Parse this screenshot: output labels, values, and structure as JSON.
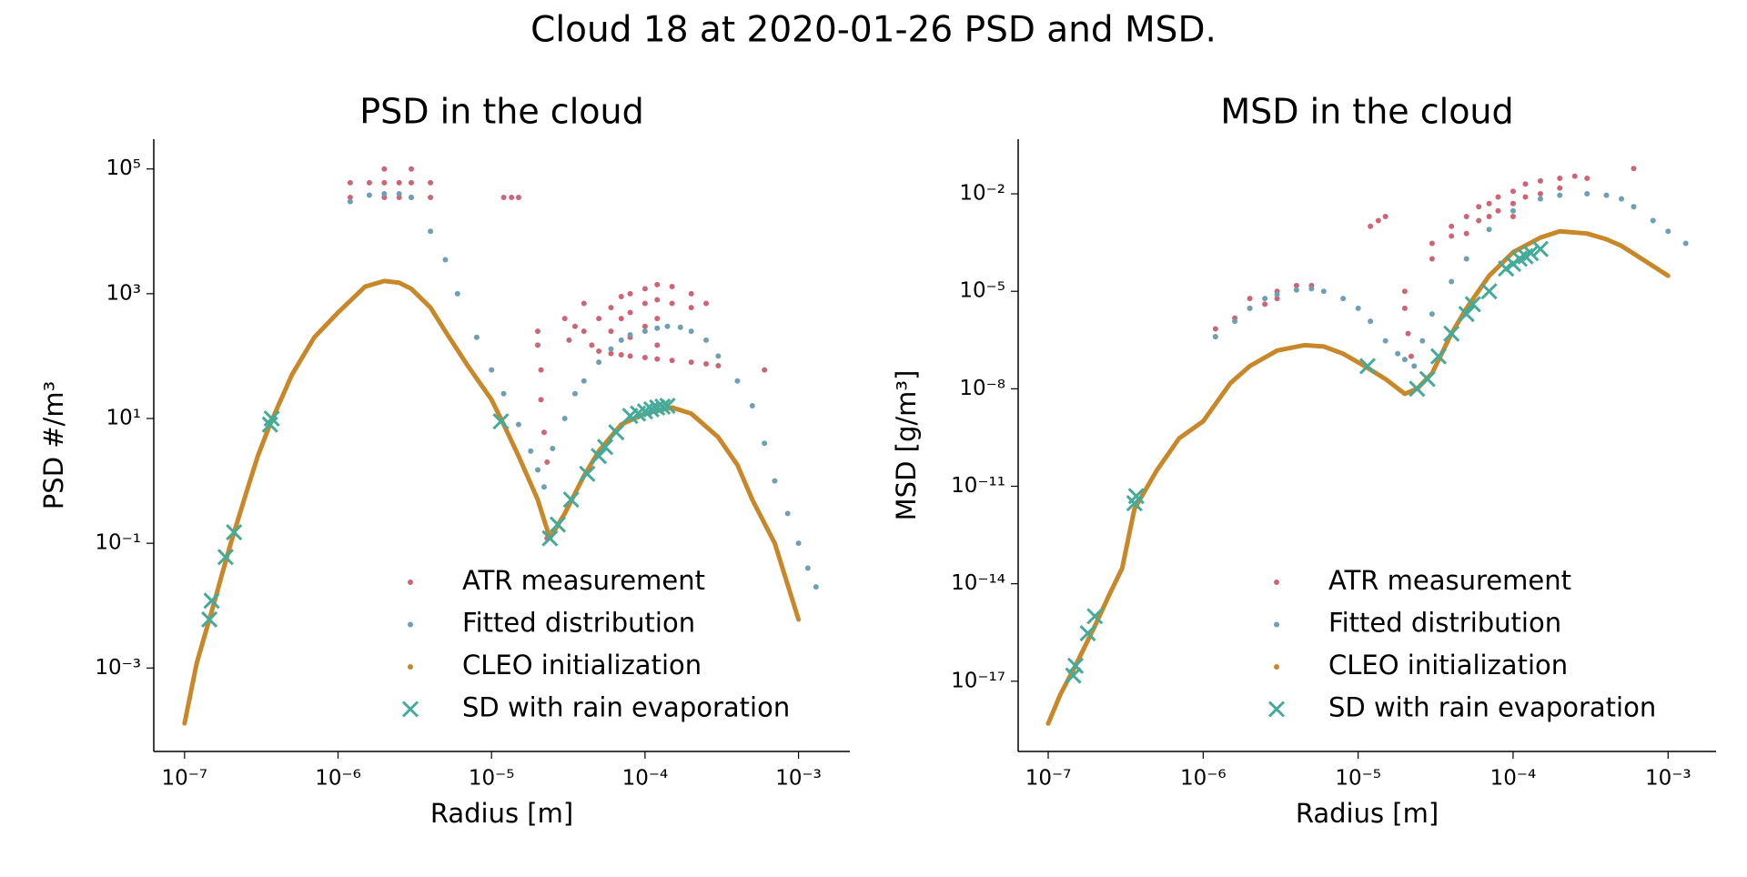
{
  "title": "Cloud 18 at 2020-01-26  PSD and MSD.",
  "chart_data": [
    {
      "type": "scatter",
      "title": "PSD in the cloud",
      "x_label": "Radius [m]",
      "y_label": "PSD #/m³",
      "log_x": true,
      "log_y": true,
      "legend": "lower right",
      "xlim": [
        6.3e-08,
        0.00216
      ],
      "ylim": [
        4.6e-05,
        300000.0
      ],
      "xticks": [
        {
          "value": 1e-07,
          "label": "10⁻⁷"
        },
        {
          "value": 1e-06,
          "label": "10⁻⁶"
        },
        {
          "value": 1e-05,
          "label": "10⁻⁵"
        },
        {
          "value": 0.0001,
          "label": "10⁻⁴"
        },
        {
          "value": 0.001,
          "label": "10⁻³"
        }
      ],
      "yticks": [
        {
          "value": 0.001,
          "label": "10⁻³"
        },
        {
          "value": 0.1,
          "label": "10⁻¹"
        },
        {
          "value": 10,
          "label": "10¹"
        },
        {
          "value": 1000,
          "label": "10³"
        },
        {
          "value": 100000,
          "label": "10⁵"
        }
      ],
      "series": [
        {
          "name": "ATR measurement",
          "color": "#cc6677",
          "marker": "dot",
          "x": [
            1.2e-06,
            1.2e-06,
            1.6e-06,
            2e-06,
            2e-06,
            2e-06,
            2.5e-06,
            2.5e-06,
            3e-06,
            3e-06,
            3e-06,
            4e-06,
            4e-06,
            1.2e-05,
            1.35e-05,
            1.5e-05,
            2e-05,
            2e-05,
            2.1e-05,
            2.1e-05,
            2.2e-05,
            2.3e-05,
            2.3e-05,
            3e-05,
            3.2e-05,
            3.5e-05,
            4e-05,
            4e-05,
            4.5e-05,
            5e-05,
            5e-05,
            6e-05,
            6e-05,
            6e-05,
            7e-05,
            7e-05,
            7e-05,
            8e-05,
            8e-05,
            8e-05,
            8e-05,
            0.0001,
            0.0001,
            0.0001,
            0.0001,
            0.00012,
            0.00012,
            0.00012,
            0.00012,
            0.00012,
            0.00015,
            0.00015,
            0.00015,
            0.0002,
            0.0002,
            0.0002,
            0.00025,
            0.00025,
            0.0003,
            0.0006
          ],
          "values": [
            60000,
            35000,
            60000,
            100000,
            60000,
            35000,
            60000,
            35000,
            100000,
            60000,
            35000,
            60000,
            35000,
            35000,
            35000,
            35000,
            250,
            150,
            60,
            20,
            6,
            2,
            0.12,
            400,
            180,
            300,
            700,
            250,
            150,
            400,
            120,
            600,
            250,
            110,
            900,
            400,
            105,
            1000,
            500,
            200,
            100,
            1200,
            700,
            300,
            95,
            1400,
            800,
            400,
            150,
            90,
            1300,
            700,
            85,
            1000,
            600,
            80,
            700,
            75,
            70,
            60
          ]
        },
        {
          "name": "Fitted distribution",
          "color": "#6f9fb5",
          "marker": "dot",
          "x": [
            1.2e-06,
            1.6e-06,
            2e-06,
            2.5e-06,
            3e-06,
            4e-06,
            5e-06,
            6e-06,
            8e-06,
            1e-05,
            1.2e-05,
            1.5e-05,
            1.8e-05,
            2e-05,
            2.2e-05,
            2.5e-05,
            3e-05,
            3.5e-05,
            4e-05,
            5e-05,
            6e-05,
            7e-05,
            8e-05,
            0.0001,
            0.00012,
            0.00014,
            0.00017,
            0.0002,
            0.00025,
            0.0003,
            0.0004,
            0.0005,
            0.0006,
            0.0007,
            0.00085,
            0.001,
            0.00115,
            0.0013
          ],
          "values": [
            30000,
            38000,
            40000,
            40000,
            35000,
            10000,
            3500,
            1000,
            200,
            60,
            25,
            8,
            3,
            1.5,
            0.8,
            3.3,
            10,
            25,
            40,
            80,
            130,
            180,
            220,
            250,
            280,
            300,
            290,
            250,
            180,
            100,
            40,
            16,
            4,
            1,
            0.3,
            0.1,
            0.04,
            0.02
          ]
        },
        {
          "name": "CLEO initialization",
          "color": "#c8882a",
          "marker": "line",
          "x": [
            1e-07,
            1.2e-07,
            1.5e-07,
            1.8e-07,
            2e-07,
            2.5e-07,
            3e-07,
            3.6e-07,
            5e-07,
            7e-07,
            1e-06,
            1.5e-06,
            2e-06,
            2.5e-06,
            3e-06,
            4e-06,
            5e-06,
            7e-06,
            1e-05,
            1.2e-05,
            1.5e-05,
            2e-05,
            2.4e-05,
            3e-05,
            4e-05,
            5e-05,
            7e-05,
            0.0001,
            0.00015,
            0.0002,
            0.0003,
            0.0004,
            0.0005,
            0.0007,
            0.001
          ],
          "values": [
            0.00013,
            0.0012,
            0.008,
            0.04,
            0.1,
            0.6,
            2.5,
            8,
            50,
            200,
            500,
            1300,
            1600,
            1500,
            1200,
            600,
            250,
            70,
            20,
            8,
            2.5,
            0.5,
            0.12,
            0.3,
            1.2,
            3,
            8,
            12,
            15,
            12,
            5,
            1.8,
            0.5,
            0.1,
            0.006
          ]
        },
        {
          "name": "SD with rain evaporation",
          "color": "#44aa99",
          "marker": "x",
          "x": [
            1.45e-07,
            1.5e-07,
            1.85e-07,
            2.1e-07,
            3.6e-07,
            3.7e-07,
            1.15e-05,
            2.4e-05,
            2.7e-05,
            3.3e-05,
            4.2e-05,
            5e-05,
            5.5e-05,
            6.5e-05,
            8e-05,
            9e-05,
            0.0001,
            0.00011,
            0.00012,
            0.00013,
            0.00014
          ],
          "values": [
            0.006,
            0.012,
            0.06,
            0.15,
            8,
            10,
            9,
            0.12,
            0.2,
            0.5,
            1.3,
            2.5,
            3.5,
            6,
            11,
            12,
            13,
            14,
            15,
            15.5,
            16
          ]
        }
      ]
    },
    {
      "type": "scatter",
      "title": "MSD in the cloud",
      "x_label": "Radius [m]",
      "y_label": "MSD [g/m³]",
      "log_x": true,
      "log_y": true,
      "legend": "lower right",
      "xlim": [
        6.4e-08,
        0.00204
      ],
      "ylim": [
        6.9e-20,
        0.48
      ],
      "xticks": [
        {
          "value": 1e-07,
          "label": "10⁻⁷"
        },
        {
          "value": 1e-06,
          "label": "10⁻⁶"
        },
        {
          "value": 1e-05,
          "label": "10⁻⁵"
        },
        {
          "value": 0.0001,
          "label": "10⁻⁴"
        },
        {
          "value": 0.001,
          "label": "10⁻³"
        }
      ],
      "yticks": [
        {
          "value": 1e-17,
          "label": "10⁻¹⁷"
        },
        {
          "value": 1e-14,
          "label": "10⁻¹⁴"
        },
        {
          "value": 1e-11,
          "label": "10⁻¹¹"
        },
        {
          "value": 1e-08,
          "label": "10⁻⁸"
        },
        {
          "value": 1e-05,
          "label": "10⁻⁵"
        },
        {
          "value": 0.01,
          "label": "10⁻²"
        }
      ],
      "series": [
        {
          "name": "ATR measurement",
          "color": "#cc6677",
          "marker": "dot",
          "x": [
            1.2e-06,
            1.2e-06,
            1.6e-06,
            2e-06,
            2e-06,
            2.5e-06,
            3e-06,
            3e-06,
            4e-06,
            5e-06,
            1.2e-05,
            1.35e-05,
            1.5e-05,
            2e-05,
            2e-05,
            2.1e-05,
            2.2e-05,
            3e-05,
            3e-05,
            4e-05,
            4e-05,
            5e-05,
            5e-05,
            6e-05,
            6e-05,
            7e-05,
            7e-05,
            8e-05,
            8e-05,
            0.0001,
            0.0001,
            0.0001,
            0.00012,
            0.00012,
            0.00015,
            0.00015,
            0.0002,
            0.0002,
            0.00025,
            0.0003,
            0.0006
          ],
          "values": [
            4e-07,
            7e-07,
            1.5e-06,
            3e-06,
            6e-06,
            4e-06,
            1e-05,
            6e-06,
            1.5e-05,
            1.5e-05,
            0.001,
            0.0015,
            0.002,
            1e-05,
            3e-06,
            5e-07,
            1e-07,
            0.0001,
            0.0003,
            0.0005,
            0.001,
            0.002,
            0.0006,
            0.004,
            0.0015,
            0.005,
            0.002,
            0.008,
            0.003,
            0.012,
            0.005,
            0.002,
            0.02,
            0.008,
            0.025,
            0.01,
            0.03,
            0.015,
            0.035,
            0.03,
            0.06
          ]
        },
        {
          "name": "Fitted distribution",
          "color": "#6f9fb5",
          "marker": "dot",
          "x": [
            1.2e-06,
            1.6e-06,
            2e-06,
            2.5e-06,
            3e-06,
            4e-06,
            5e-06,
            6e-06,
            8e-06,
            1e-05,
            1.2e-05,
            1.5e-05,
            1.8e-05,
            2e-05,
            2.3e-05,
            2.6e-05,
            3e-05,
            4e-05,
            5e-05,
            7e-05,
            0.0001,
            0.00015,
            0.0002,
            0.0003,
            0.0004,
            0.0005,
            0.0006,
            0.0008,
            0.001,
            0.0013
          ],
          "values": [
            4e-07,
            1.2e-06,
            3e-06,
            6e-06,
            8e-06,
            1.1e-05,
            1.2e-05,
            1e-05,
            6e-06,
            3e-06,
            1.2e-06,
            3e-07,
            1.2e-07,
            8e-08,
            5e-08,
            3e-07,
            2e-06,
            2e-05,
            0.0001,
            0.0008,
            0.003,
            0.007,
            0.009,
            0.01,
            0.009,
            0.007,
            0.004,
            0.0015,
            0.0007,
            0.0003
          ]
        },
        {
          "name": "CLEO initialization",
          "color": "#c8882a",
          "marker": "line",
          "x": [
            1e-07,
            1.2e-07,
            1.5e-07,
            2e-07,
            2.5e-07,
            3e-07,
            3.6e-07,
            5e-07,
            7e-07,
            1e-06,
            1.5e-06,
            2e-06,
            3e-06,
            4.5e-06,
            6e-06,
            8e-06,
            1.1e-05,
            1.5e-05,
            2e-05,
            2.4e-05,
            3e-05,
            4e-05,
            5e-05,
            7e-05,
            0.0001,
            0.00015,
            0.0002,
            0.0003,
            0.0004,
            0.0005,
            0.0007,
            0.001
          ],
          "values": [
            5e-19,
            4e-18,
            3e-17,
            5e-16,
            5e-15,
            3e-14,
            2e-12,
            3e-11,
            3e-10,
            1e-09,
            1.5e-08,
            5e-08,
            1.5e-07,
            2.2e-07,
            2e-07,
            1.2e-07,
            5e-08,
            2e-08,
            7e-09,
            1e-08,
            3e-08,
            5e-07,
            3e-06,
            3e-05,
            0.00016,
            0.00045,
            0.0007,
            0.0006,
            0.0004,
            0.00025,
            9e-05,
            3e-05
          ]
        },
        {
          "name": "SD with rain evaporation",
          "color": "#44aa99",
          "marker": "x",
          "x": [
            1.45e-07,
            1.5e-07,
            1.8e-07,
            2e-07,
            3.6e-07,
            3.7e-07,
            1.15e-05,
            2.4e-05,
            2.8e-05,
            3.3e-05,
            4e-05,
            5e-05,
            5.5e-05,
            7e-05,
            9e-05,
            0.0001,
            0.00011,
            0.00012,
            0.00013,
            0.00015
          ],
          "values": [
            1.5e-17,
            3e-17,
            3e-16,
            1e-15,
            3e-12,
            5e-12,
            5e-08,
            1e-08,
            2e-08,
            1e-07,
            5e-07,
            2e-06,
            4e-06,
            1e-05,
            5e-05,
            7e-05,
            0.0001,
            0.00012,
            0.00015,
            0.0002
          ]
        }
      ]
    }
  ]
}
